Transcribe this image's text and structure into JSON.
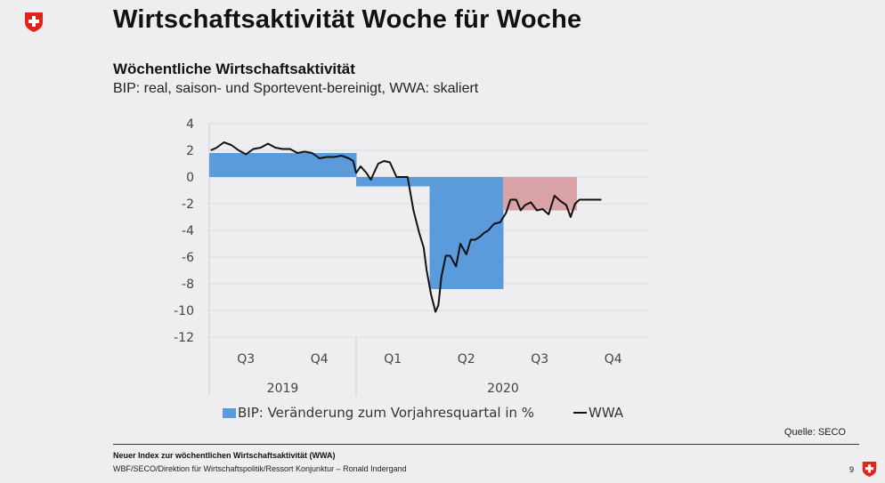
{
  "header": {
    "title": "Wirtschaftsaktivität Woche für Woche",
    "subtitle": "Wöchentliche Wirtschaftsaktivität",
    "description": "BIP: real, saison- und Sportevent-bereinigt, WWA: skaliert"
  },
  "logo_icon": "swiss-cross-shield-icon",
  "colors": {
    "bip": "#5b9bdc",
    "bip_forecast": "#d8a2a6",
    "wwa": "#111111",
    "grid": "#dcdcdc"
  },
  "chart_data": {
    "type": "bar+line",
    "title": "Wöchentliche Wirtschaftsaktivität",
    "ylim": [
      -12,
      4
    ],
    "yticks": [
      4,
      2,
      0,
      -2,
      -4,
      -6,
      -8,
      -10,
      -12
    ],
    "grid": true,
    "x_quarters": [
      {
        "label": "Q3",
        "year": "2019"
      },
      {
        "label": "Q4",
        "year": "2019"
      },
      {
        "label": "Q1",
        "year": "2020"
      },
      {
        "label": "Q2",
        "year": "2020"
      },
      {
        "label": "Q3",
        "year": "2020"
      },
      {
        "label": "Q4",
        "year": "2020"
      }
    ],
    "years": [
      {
        "label": "2019",
        "span": [
          0,
          2
        ]
      },
      {
        "label": "2020",
        "span": [
          2,
          6
        ]
      }
    ],
    "series": [
      {
        "name": "BIP: Veränderung zum Vorjahresquartal in %",
        "kind": "bar",
        "values": [
          {
            "quarter": 0,
            "value": 1.8
          },
          {
            "quarter": 1,
            "value": 1.8
          },
          {
            "quarter": 2,
            "value": -0.7
          },
          {
            "quarter": 3,
            "value": -8.4
          },
          {
            "quarter": 4,
            "value": -2.5,
            "forecast": true
          }
        ]
      },
      {
        "name": "WWA",
        "kind": "line",
        "x_quarters": [
          0.02,
          0.1,
          0.2,
          0.3,
          0.4,
          0.5,
          0.6,
          0.7,
          0.8,
          0.9,
          1.0,
          1.1,
          1.2,
          1.3,
          1.4,
          1.5,
          1.6,
          1.7,
          1.8,
          1.9,
          1.96,
          2.0,
          2.06,
          2.14,
          2.2,
          2.3,
          2.38,
          2.46,
          2.55,
          2.62,
          2.7,
          2.78,
          2.86,
          2.92,
          2.96,
          3.02,
          3.08,
          3.12,
          3.16,
          3.22,
          3.28,
          3.36,
          3.42,
          3.5,
          3.56,
          3.62,
          3.68,
          3.74,
          3.8,
          3.88,
          3.96,
          4.04,
          4.1,
          4.18,
          4.24,
          4.3,
          4.38,
          4.46,
          4.54,
          4.62,
          4.7,
          4.78,
          4.86,
          4.92,
          4.98,
          5.04,
          5.12,
          5.2,
          5.28,
          5.34
        ],
        "values": [
          2.0,
          2.2,
          2.6,
          2.4,
          2.0,
          1.7,
          2.1,
          2.2,
          2.5,
          2.2,
          2.1,
          2.1,
          1.8,
          1.9,
          1.8,
          1.4,
          1.5,
          1.5,
          1.6,
          1.4,
          1.2,
          0.3,
          0.8,
          0.3,
          -0.2,
          1.0,
          1.2,
          1.1,
          0.0,
          0.0,
          0.0,
          -2.5,
          -4.2,
          -5.3,
          -7.0,
          -8.8,
          -10.1,
          -9.6,
          -7.5,
          -5.9,
          -5.9,
          -6.7,
          -5.0,
          -5.8,
          -4.7,
          -4.7,
          -4.5,
          -4.2,
          -4.0,
          -3.5,
          -3.4,
          -2.7,
          -1.7,
          -1.7,
          -2.5,
          -2.1,
          -1.9,
          -2.5,
          -2.4,
          -2.8,
          -1.4,
          -1.8,
          -2.1,
          -3.0,
          -2.0,
          -1.7,
          -1.7,
          -1.7,
          -1.7,
          -1.7
        ]
      }
    ],
    "legend": {
      "placement": "bottom",
      "entries": [
        "BIP: Veränderung zum Vorjahresquartal in %",
        "WWA"
      ]
    },
    "source": "Quelle: SECO"
  },
  "legend": {
    "bip": "BIP: Veränderung zum Vorjahresquartal in %",
    "wwa": "WWA"
  },
  "source": "Quelle: SECO",
  "footer": {
    "line1": "Neuer Index zur wöchentlichen Wirtschaftsaktivität (WWA)",
    "line2": "WBF/SECO/Direktion für Wirtschaftspolitik/Ressort Konjunktur – Ronald Indergand",
    "page_number": "9"
  }
}
